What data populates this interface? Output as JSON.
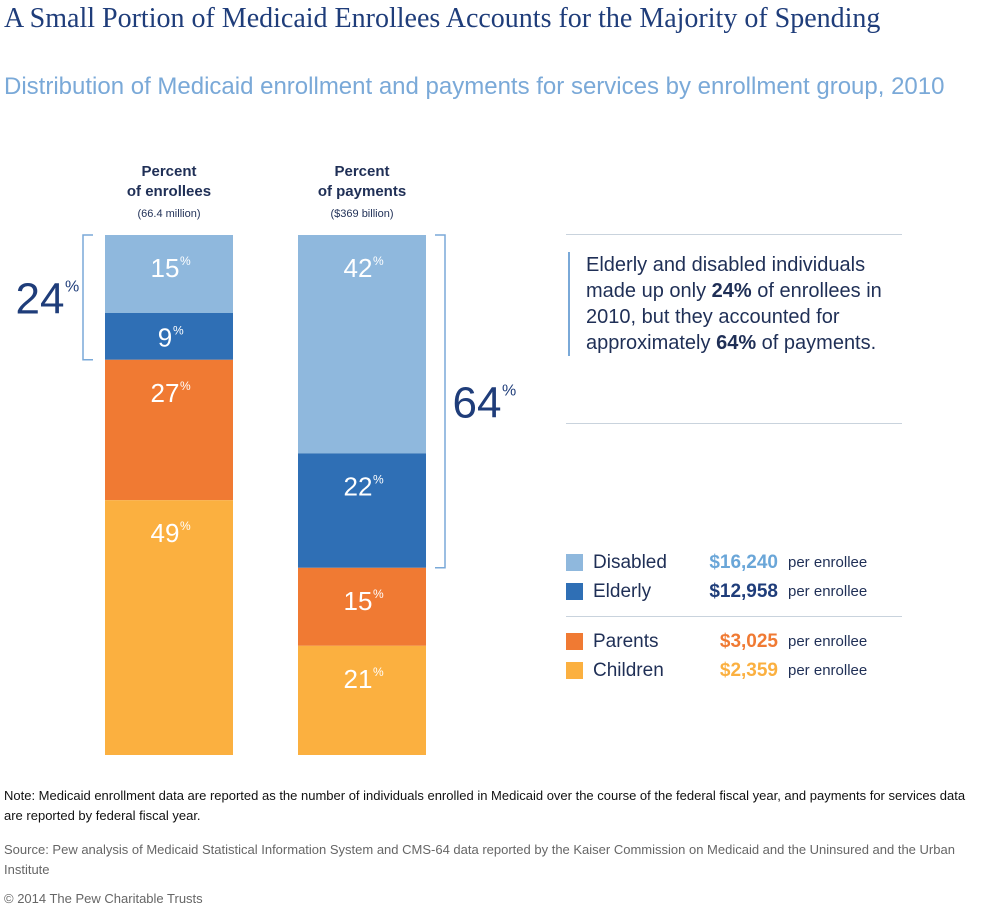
{
  "header": {
    "title": "A Small Portion of Medicaid Enrollees Accounts for the Majority of Spending",
    "subtitle": "Distribution of Medicaid enrollment and payments for services by enrollment group, 2010"
  },
  "chart_data": {
    "type": "bar",
    "stacked": true,
    "unit": "%",
    "categories": [
      "Percent of enrollees",
      "Percent of payments"
    ],
    "category_subtitles": [
      "(66.4 million)",
      "($369 billion)"
    ],
    "series": [
      {
        "name": "Disabled",
        "values": [
          15,
          42
        ],
        "color": "#8fb8dd"
      },
      {
        "name": "Elderly",
        "values": [
          9,
          22
        ],
        "color": "#2f6fb5"
      },
      {
        "name": "Parents",
        "values": [
          27,
          15
        ],
        "color": "#f07a33"
      },
      {
        "name": "Children",
        "values": [
          49,
          21
        ],
        "color": "#fbb040"
      }
    ],
    "brackets": [
      {
        "value": "24",
        "unit": "%",
        "category": "Percent of enrollees",
        "series": [
          "Disabled",
          "Elderly"
        ]
      },
      {
        "value": "64",
        "unit": "%",
        "category": "Percent of payments",
        "series": [
          "Disabled",
          "Elderly"
        ]
      }
    ]
  },
  "callout": {
    "line1": "Elderly and disabled individuals made up only",
    "bold1": "24%",
    "line2": "of enrollees in 2010, but they accounted for approximately",
    "bold2": "64%",
    "line3": "of payments."
  },
  "legend": {
    "unit": "per enrollee",
    "groups": [
      [
        {
          "name": "Disabled",
          "value": "$16,240",
          "color": "#8fb8dd",
          "value_color": "#6aa6d8"
        },
        {
          "name": "Elderly",
          "value": "$12,958",
          "color": "#2f6fb5",
          "value_color": "#1f3d7a"
        }
      ],
      [
        {
          "name": "Parents",
          "value": "$3,025",
          "color": "#f07a33",
          "value_color": "#f07a33"
        },
        {
          "name": "Children",
          "value": "$2,359",
          "color": "#fbb040",
          "value_color": "#fbb040"
        }
      ]
    ]
  },
  "footer": {
    "note": "Note: Medicaid enrollment data are reported as the number of individuals enrolled in Medicaid over the course of the federal fiscal year, and payments for services data are reported by federal fiscal year.",
    "source": "Source: Pew analysis of Medicaid Statistical Information System and CMS-64 data reported by the Kaiser Commission on Medicaid and the Uninsured and the Urban Institute",
    "copyright": "© 2014 The Pew Charitable Trusts"
  }
}
